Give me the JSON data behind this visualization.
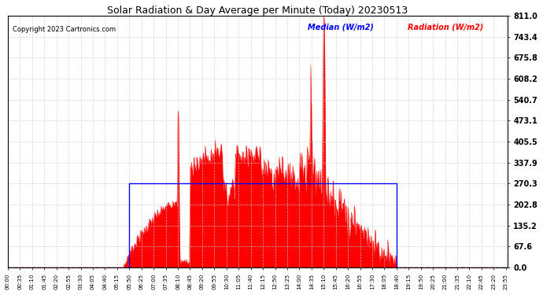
{
  "title": "Solar Radiation & Day Average per Minute (Today) 20230513",
  "copyright": "Copyright 2023 Cartronics.com",
  "legend_median": "Median (W/m2)",
  "legend_radiation": "Radiation (W/m2)",
  "y_ticks": [
    0.0,
    67.6,
    135.2,
    202.8,
    270.3,
    337.9,
    405.5,
    473.1,
    540.7,
    608.2,
    675.8,
    743.4,
    811.0
  ],
  "ymax": 811.0,
  "ymin": 0.0,
  "median_value": 270.3,
  "median_start_minute": 350,
  "median_end_minute": 1120,
  "bg_color": "#ffffff",
  "radiation_color": "#ff0000",
  "median_color": "#0000ff",
  "grid_color": "#cccccc",
  "title_color": "#000000",
  "copyright_color": "#000000",
  "x_tick_minutes": [
    0,
    35,
    70,
    105,
    140,
    175,
    210,
    245,
    280,
    315,
    350,
    385,
    420,
    455,
    490,
    525,
    560,
    595,
    630,
    665,
    700,
    735,
    770,
    805,
    840,
    875,
    910,
    945,
    980,
    1015,
    1050,
    1085,
    1120,
    1155,
    1190,
    1225,
    1260,
    1295,
    1330,
    1365,
    1400,
    1435
  ],
  "x_tick_labels": [
    "00:00",
    "00:35",
    "01:10",
    "01:45",
    "02:20",
    "02:55",
    "03:30",
    "04:05",
    "04:40",
    "05:15",
    "05:50",
    "06:25",
    "07:00",
    "07:35",
    "08:10",
    "08:45",
    "09:20",
    "09:55",
    "10:30",
    "11:05",
    "11:40",
    "12:15",
    "12:50",
    "13:25",
    "14:00",
    "14:35",
    "15:10",
    "15:45",
    "16:20",
    "16:55",
    "17:30",
    "18:05",
    "18:40",
    "19:15",
    "19:50",
    "20:25",
    "21:00",
    "21:35",
    "22:10",
    "22:45",
    "23:20",
    "23:55"
  ]
}
